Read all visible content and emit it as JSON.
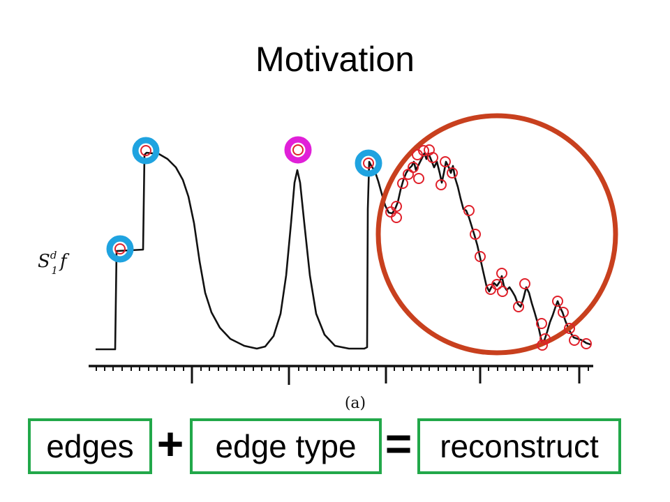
{
  "title": "Motivation",
  "figure": {
    "ylabel": "S",
    "ylabel_sup": "d",
    "ylabel_sub": "1",
    "ylabel_f": "f",
    "caption": "(a)"
  },
  "equation": {
    "term1": "edges",
    "op1": "+",
    "term2": "edge type",
    "op2": "=",
    "result": "reconstruct"
  },
  "colors": {
    "edge_box_border": "#22a84a",
    "big_circle": "#c8401e",
    "small_marker": "#e0202a",
    "highlight_blue": "#1fa3e0",
    "highlight_magenta": "#e020d8",
    "signal": "#111111"
  }
}
